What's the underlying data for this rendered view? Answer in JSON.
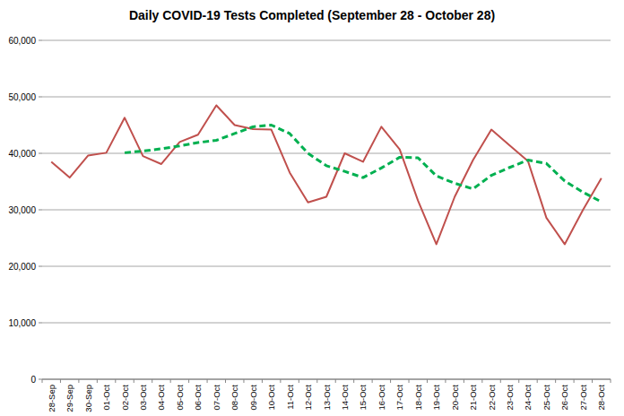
{
  "chart_data": {
    "type": "line",
    "title": "Daily COVID-19 Tests Completed (September 28 - October 28)",
    "categories": [
      "28-Sep",
      "29-Sep",
      "30-Sep",
      "01-Oct",
      "02-Oct",
      "03-Oct",
      "04-Oct",
      "05-Oct",
      "06-Oct",
      "07-Oct",
      "08-Oct",
      "09-Oct",
      "10-Oct",
      "11-Oct",
      "12-Oct",
      "13-Oct",
      "14-Oct",
      "15-Oct",
      "16-Oct",
      "17-Oct",
      "18-Oct",
      "19-Oct",
      "20-Oct",
      "21-Oct",
      "22-Oct",
      "23-Oct",
      "24-Oct",
      "25-Oct",
      "26-Oct",
      "27-Oct",
      "28-Oct"
    ],
    "series": [
      {
        "color": "#c0504d",
        "line_style": "solid",
        "values": [
          38500,
          35700,
          39600,
          40100,
          46300,
          39500,
          38100,
          42000,
          43300,
          48500,
          45000,
          44300,
          44200,
          36600,
          31300,
          32300,
          40000,
          38500,
          44700,
          40700,
          31600,
          23900,
          32300,
          38800,
          44200,
          41400,
          38600,
          28600,
          23900,
          30000,
          35600
        ]
      },
      {
        "color": "#00b050",
        "line_style": "dashed",
        "values": [
          null,
          null,
          null,
          null,
          40100,
          40400,
          40800,
          41300,
          41900,
          42300,
          43500,
          44700,
          45000,
          43500,
          40000,
          37800,
          36800,
          35700,
          37400,
          39300,
          39200,
          36000,
          34700,
          33700,
          36100,
          37500,
          38800,
          38200,
          35100,
          33100,
          31400
        ]
      }
    ],
    "ylim": [
      0,
      60000
    ],
    "yticks": [
      0,
      {
        "value": 10000,
        "label": "10,000"
      },
      {
        "value": 20000,
        "label": "20,000"
      },
      {
        "value": 30000,
        "label": "30,000"
      },
      {
        "value": 40000,
        "label": "40,000"
      },
      {
        "value": 50000,
        "label": "50,000"
      },
      {
        "value": 60000,
        "label": "60,000"
      }
    ],
    "grid": true
  }
}
